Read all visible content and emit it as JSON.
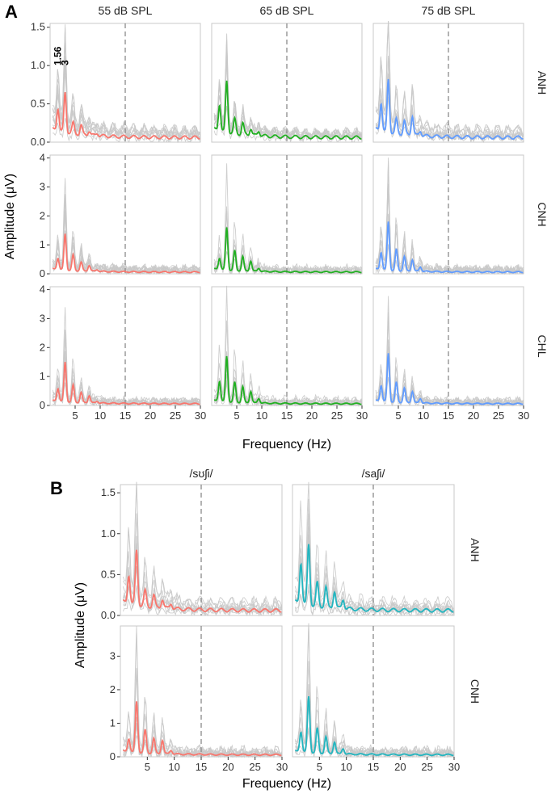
{
  "figure": {
    "panel_a_letter": "A",
    "panel_b_letter": "B",
    "y_axis_title_a": "Amplitude (μV)",
    "y_axis_title_b": "Amplitude (μV)",
    "x_axis_title_a": "Frequency (Hz)",
    "x_axis_title_b": "Frequency (Hz)"
  },
  "chart_data": [
    {
      "type": "line",
      "panel": "A",
      "title": "",
      "xlabel": "Frequency (Hz)",
      "ylabel": "Amplitude (μV)",
      "columns": [
        "55 dB SPL",
        "65 dB SPL",
        "75 dB SPL"
      ],
      "rows": [
        "ANH",
        "CNH",
        "CHL"
      ],
      "column_colors": [
        "#F8766D",
        "#22B022",
        "#619CFF"
      ],
      "xlim": [
        0,
        30
      ],
      "x_ticks": [
        5,
        10,
        15,
        20,
        25,
        30
      ],
      "vline_x": 15,
      "row_axes": [
        {
          "row": "ANH",
          "ylim": [
            0,
            1.55
          ],
          "y_ticks": [
            0.0,
            0.5,
            1.0,
            1.5
          ],
          "y_tick_labels": [
            "0.0",
            "0.5",
            "1.0",
            "1.5"
          ]
        },
        {
          "row": "CNH",
          "ylim": [
            0,
            4.1
          ],
          "y_ticks": [
            0,
            1,
            2,
            3,
            4
          ],
          "y_tick_labels": [
            "0",
            "1",
            "2",
            "3",
            "4"
          ]
        },
        {
          "row": "CHL",
          "ylim": [
            0,
            4.1
          ],
          "y_ticks": [
            0,
            1,
            2,
            3,
            4
          ],
          "y_tick_labels": [
            "0",
            "1",
            "2",
            "3",
            "4"
          ]
        }
      ],
      "peak_annotations": [
        {
          "row": "ANH",
          "column": "55 dB SPL",
          "x": 1.56,
          "label": "1.56"
        },
        {
          "row": "ANH",
          "column": "55 dB SPL",
          "x": 3.0,
          "label": "3"
        }
      ],
      "mean_series": [
        {
          "row": "ANH",
          "column": "55 dB SPL",
          "peaks": [
            0.45,
            0.65,
            0.25,
            0.22,
            0.15,
            0.12
          ]
        },
        {
          "row": "ANH",
          "column": "65 dB SPL",
          "peaks": [
            0.5,
            0.8,
            0.3,
            0.25,
            0.18,
            0.15
          ]
        },
        {
          "row": "ANH",
          "column": "75 dB SPL",
          "peaks": [
            0.52,
            0.82,
            0.3,
            0.28,
            0.35,
            0.15
          ]
        },
        {
          "row": "CNH",
          "column": "55 dB SPL",
          "peaks": [
            0.55,
            1.38,
            0.65,
            0.4,
            0.3,
            0.15
          ]
        },
        {
          "row": "CNH",
          "column": "65 dB SPL",
          "peaks": [
            0.55,
            1.6,
            0.8,
            0.6,
            0.45,
            0.2
          ]
        },
        {
          "row": "CNH",
          "column": "75 dB SPL",
          "peaks": [
            0.75,
            1.8,
            0.85,
            0.6,
            0.5,
            0.25
          ]
        },
        {
          "row": "CHL",
          "column": "55 dB SPL",
          "peaks": [
            0.6,
            1.5,
            0.7,
            0.45,
            0.35,
            0.15
          ]
        },
        {
          "row": "CHL",
          "column": "65 dB SPL",
          "peaks": [
            0.85,
            1.7,
            0.8,
            0.65,
            0.5,
            0.25
          ]
        },
        {
          "row": "CHL",
          "column": "75 dB SPL",
          "peaks": [
            0.7,
            1.8,
            0.8,
            0.6,
            0.5,
            0.25
          ]
        }
      ]
    },
    {
      "type": "line",
      "panel": "B",
      "title": "",
      "xlabel": "Frequency (Hz)",
      "ylabel": "Amplitude (μV)",
      "columns": [
        "/sʊʃi/",
        "/saʃi/"
      ],
      "rows": [
        "ANH",
        "CNH"
      ],
      "column_colors": [
        "#F8766D",
        "#22B5BF"
      ],
      "xlim": [
        0,
        30
      ],
      "x_ticks": [
        5,
        10,
        15,
        20,
        25,
        30
      ],
      "vline_x": 15,
      "row_axes": [
        {
          "row": "ANH",
          "ylim": [
            0,
            1.6
          ],
          "y_ticks": [
            0.0,
            0.5,
            1.0,
            1.5
          ],
          "y_tick_labels": [
            "0.0",
            "0.5",
            "1.0",
            "1.5"
          ]
        },
        {
          "row": "CNH",
          "ylim": [
            0,
            3.9
          ],
          "y_ticks": [
            0,
            1,
            2,
            3
          ],
          "y_tick_labels": [
            "0",
            "1",
            "2",
            "3"
          ]
        }
      ],
      "mean_series": [
        {
          "row": "ANH",
          "column": "/sʊʃi/",
          "peaks": [
            0.5,
            0.8,
            0.3,
            0.25,
            0.2,
            0.15
          ]
        },
        {
          "row": "ANH",
          "column": "/saʃi/",
          "peaks": [
            0.65,
            0.87,
            0.4,
            0.35,
            0.3,
            0.2
          ]
        },
        {
          "row": "CNH",
          "column": "/sʊʃi/",
          "peaks": [
            0.55,
            1.65,
            0.8,
            0.55,
            0.5,
            0.2
          ]
        },
        {
          "row": "CNH",
          "column": "/saʃi/",
          "peaks": [
            0.75,
            1.8,
            0.85,
            0.6,
            0.45,
            0.25
          ]
        }
      ]
    }
  ]
}
